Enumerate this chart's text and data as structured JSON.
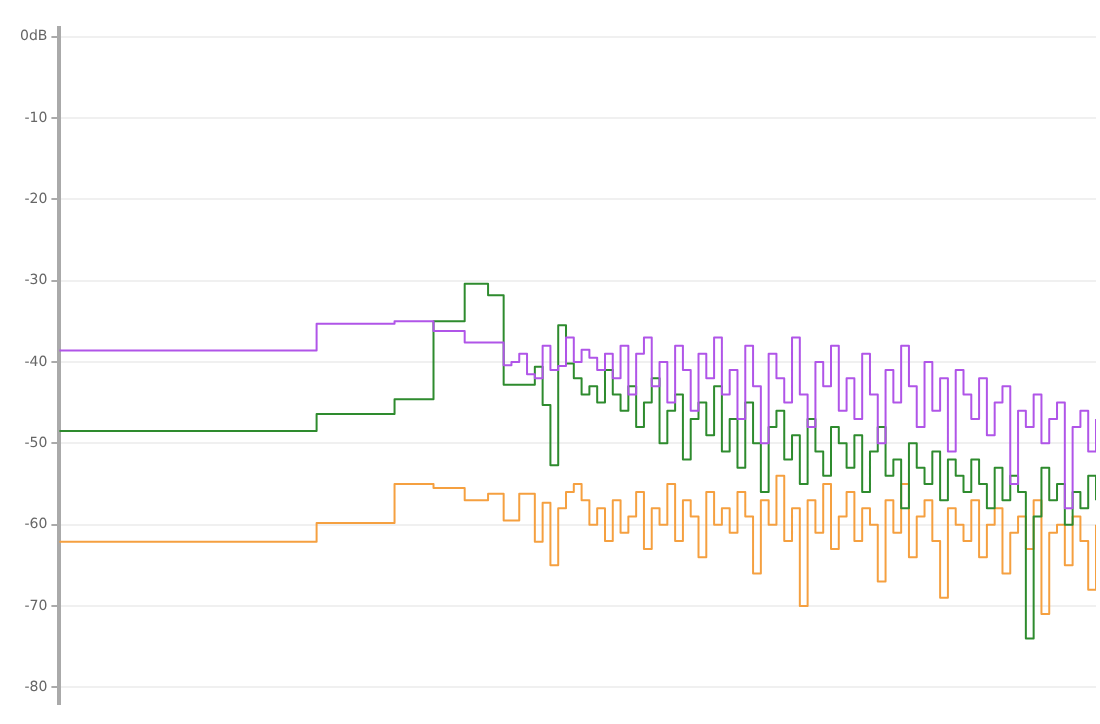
{
  "chart_data": {
    "type": "step",
    "categories": [
      null,
      null,
      null,
      null,
      null,
      null,
      null,
      null,
      null,
      null,
      null,
      null,
      null,
      null,
      null,
      null,
      null,
      null,
      null,
      null,
      null,
      null,
      null,
      null,
      null,
      null,
      null,
      null,
      null,
      null,
      null,
      null,
      null,
      null,
      null,
      null,
      null,
      null,
      null,
      null,
      null,
      null,
      null,
      null,
      null,
      null,
      null,
      null,
      null,
      null,
      null,
      null,
      null,
      null,
      null,
      null,
      null,
      null,
      null,
      null,
      null,
      null,
      null,
      null,
      null,
      null,
      null,
      null,
      null,
      null,
      null,
      null,
      null,
      null,
      null,
      null,
      null,
      null,
      null,
      null,
      null,
      null,
      null,
      null,
      null,
      null,
      null,
      null,
      null,
      null,
      null,
      null,
      null,
      null,
      null,
      null,
      null,
      null,
      null,
      null,
      null,
      null,
      null,
      null,
      null,
      null,
      null,
      null,
      null,
      null,
      null,
      null,
      null,
      null,
      null,
      null,
      null,
      null,
      null,
      null,
      null,
      null,
      null,
      null,
      null,
      null,
      null,
      null,
      null,
      null,
      null,
      null,
      null,
      null
    ],
    "series": [
      {
        "color": "#b055e8",
        "values": [
          -38.6,
          -38.6,
          -38.6,
          -38.6,
          -38.6,
          -38.6,
          -38.6,
          -38.6,
          -38.6,
          -38.6,
          -38.6,
          -38.6,
          -38.6,
          -38.6,
          -38.6,
          -38.6,
          -38.6,
          -38.6,
          -38.6,
          -38.6,
          -38.6,
          -38.6,
          -38.6,
          -38.6,
          -38.6,
          -38.6,
          -38.6,
          -38.6,
          -38.6,
          -38.6,
          -38.6,
          -38.6,
          -38.6,
          -35.3,
          -35.3,
          -35.3,
          -35.3,
          -35.3,
          -35.3,
          -35.3,
          -35.3,
          -35.3,
          -35.3,
          -35,
          -35,
          -35,
          -35,
          -35,
          -36.2,
          -36.2,
          -36.2,
          -36.2,
          -37.6,
          -37.6,
          -37.6,
          -37.6,
          -37.6,
          -40.4,
          -40,
          -39,
          -41.5,
          -42,
          -38,
          -41,
          -40.5,
          -37,
          -40,
          -38.5,
          -39.5,
          -41,
          -39,
          -42,
          -38,
          -44,
          -39,
          -37,
          -43,
          -40,
          -45,
          -38,
          -41,
          -46,
          -39,
          -42,
          -37,
          -44,
          -41,
          -47,
          -38,
          -43,
          -50,
          -39,
          -42,
          -45,
          -37,
          -44,
          -48,
          -40,
          -43,
          -38,
          -46,
          -42,
          -47,
          -39,
          -44,
          -50,
          -41,
          -45,
          -38,
          -43,
          -48,
          -40,
          -46,
          -42,
          -51,
          -41,
          -44,
          -47,
          -42,
          -49,
          -45,
          -43,
          -55,
          -46,
          -48,
          -44,
          -50,
          -47,
          -45,
          -58,
          -48,
          -46,
          -51,
          -47
        ]
      },
      {
        "color": "#2e8b2e",
        "values": [
          -48.5,
          -48.5,
          -48.5,
          -48.5,
          -48.5,
          -48.5,
          -48.5,
          -48.5,
          -48.5,
          -48.5,
          -48.5,
          -48.5,
          -48.5,
          -48.5,
          -48.5,
          -48.5,
          -48.5,
          -48.5,
          -48.5,
          -48.5,
          -48.5,
          -48.5,
          -48.5,
          -48.5,
          -48.5,
          -48.5,
          -48.5,
          -48.5,
          -48.5,
          -48.5,
          -48.5,
          -48.5,
          -48.5,
          -46.4,
          -46.4,
          -46.4,
          -46.4,
          -46.4,
          -46.4,
          -46.4,
          -46.4,
          -46.4,
          -46.4,
          -44.6,
          -44.6,
          -44.6,
          -44.6,
          -44.6,
          -35,
          -35,
          -35,
          -35,
          -30.4,
          -30.4,
          -30.4,
          -31.8,
          -31.8,
          -42.8,
          -42.8,
          -42.8,
          -42.8,
          -40.6,
          -45.3,
          -52.7,
          -35.5,
          -40.2,
          -42,
          -44,
          -43,
          -45,
          -41,
          -44,
          -46,
          -43,
          -48,
          -45,
          -42,
          -50,
          -46,
          -44,
          -52,
          -47,
          -45,
          -49,
          -43,
          -51,
          -47,
          -53,
          -45,
          -50,
          -56,
          -48,
          -46,
          -52,
          -49,
          -55,
          -47,
          -51,
          -54,
          -48,
          -50,
          -53,
          -49,
          -56,
          -51,
          -48,
          -54,
          -52,
          -58,
          -50,
          -53,
          -55,
          -51,
          -57,
          -52,
          -54,
          -56,
          -52,
          -55,
          -58,
          -53,
          -57,
          -54,
          -56,
          -74,
          -59,
          -53,
          -57,
          -55,
          -60,
          -56,
          -58,
          -54,
          -57
        ]
      },
      {
        "color": "#f5a040",
        "values": [
          -62.1,
          -62.1,
          -62.1,
          -62.1,
          -62.1,
          -62.1,
          -62.1,
          -62.1,
          -62.1,
          -62.1,
          -62.1,
          -62.1,
          -62.1,
          -62.1,
          -62.1,
          -62.1,
          -62.1,
          -62.1,
          -62.1,
          -62.1,
          -62.1,
          -62.1,
          -62.1,
          -62.1,
          -62.1,
          -62.1,
          -62.1,
          -62.1,
          -62.1,
          -62.1,
          -62.1,
          -62.1,
          -62.1,
          -59.8,
          -59.8,
          -59.8,
          -59.8,
          -59.8,
          -59.8,
          -59.8,
          -59.8,
          -59.8,
          -59.8,
          -55,
          -55,
          -55,
          -55,
          -55,
          -55.5,
          -55.5,
          -55.5,
          -55.5,
          -57,
          -57,
          -57,
          -56.2,
          -56.2,
          -59.5,
          -59.5,
          -56.2,
          -56.2,
          -62.1,
          -57.3,
          -65,
          -58,
          -56,
          -55,
          -57,
          -60,
          -58,
          -62,
          -57,
          -61,
          -59,
          -56,
          -63,
          -58,
          -60,
          -55,
          -62,
          -57,
          -59,
          -64,
          -56,
          -60,
          -58,
          -61,
          -56,
          -59,
          -66,
          -57,
          -60,
          -54,
          -62,
          -58,
          -70,
          -57,
          -61,
          -55,
          -63,
          -59,
          -56,
          -62,
          -58,
          -60,
          -67,
          -57,
          -61,
          -55,
          -64,
          -59,
          -57,
          -62,
          -69,
          -58,
          -60,
          -62,
          -57,
          -64,
          -60,
          -58,
          -66,
          -61,
          -59,
          -63,
          -57,
          -71,
          -61,
          -60,
          -65,
          -59,
          -62,
          -68,
          -60
        ]
      }
    ],
    "ylim": [
      -82,
      1
    ],
    "yticks": [
      {
        "value": 0,
        "label": "0dB"
      },
      -10,
      -20,
      -30,
      -40,
      -50,
      -60,
      -70,
      -80
    ],
    "grid": "y",
    "legend": false,
    "tick_labels": "y"
  }
}
